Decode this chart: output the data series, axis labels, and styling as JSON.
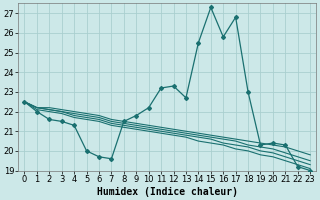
{
  "xlabel": "Humidex (Indice chaleur)",
  "bg_color": "#cce8e8",
  "grid_color": "#aacfcf",
  "line_color": "#1a7070",
  "x_values": [
    0,
    1,
    2,
    3,
    4,
    5,
    6,
    7,
    8,
    9,
    10,
    11,
    12,
    13,
    14,
    15,
    16,
    17,
    18,
    19,
    20,
    21,
    22,
    23
  ],
  "series_main": [
    22.5,
    22.0,
    21.6,
    21.5,
    21.3,
    20.0,
    19.7,
    19.6,
    21.5,
    21.8,
    22.2,
    23.2,
    23.3,
    22.7,
    25.5,
    27.3,
    25.8,
    26.8,
    23.0,
    20.3,
    20.4,
    20.3,
    19.2,
    19.0
  ],
  "series_straight": [
    [
      22.5,
      22.2,
      22.2,
      22.1,
      22.0,
      21.9,
      21.8,
      21.6,
      21.5,
      21.4,
      21.3,
      21.2,
      21.1,
      21.0,
      20.9,
      20.8,
      20.7,
      20.6,
      20.5,
      20.4,
      20.3,
      20.2,
      20.0,
      19.8
    ],
    [
      22.5,
      22.2,
      22.1,
      22.0,
      21.9,
      21.8,
      21.7,
      21.5,
      21.4,
      21.3,
      21.2,
      21.1,
      21.0,
      20.9,
      20.8,
      20.7,
      20.6,
      20.5,
      20.3,
      20.2,
      20.1,
      19.9,
      19.7,
      19.5
    ],
    [
      22.5,
      22.2,
      22.1,
      22.0,
      21.8,
      21.7,
      21.6,
      21.4,
      21.3,
      21.2,
      21.1,
      21.0,
      20.9,
      20.8,
      20.7,
      20.6,
      20.4,
      20.3,
      20.2,
      20.0,
      19.9,
      19.7,
      19.5,
      19.3
    ],
    [
      22.5,
      22.1,
      22.0,
      21.9,
      21.7,
      21.6,
      21.5,
      21.3,
      21.2,
      21.1,
      21.0,
      20.9,
      20.8,
      20.7,
      20.5,
      20.4,
      20.3,
      20.1,
      20.0,
      19.8,
      19.7,
      19.5,
      19.3,
      19.1
    ]
  ],
  "ylim": [
    19,
    27.5
  ],
  "yticks": [
    19,
    20,
    21,
    22,
    23,
    24,
    25,
    26,
    27
  ],
  "xlim": [
    -0.5,
    23.5
  ],
  "xticks": [
    0,
    1,
    2,
    3,
    4,
    5,
    6,
    7,
    8,
    9,
    10,
    11,
    12,
    13,
    14,
    15,
    16,
    17,
    18,
    19,
    20,
    21,
    22,
    23
  ],
  "xlabel_fontsize": 7,
  "tick_fontsize": 6
}
